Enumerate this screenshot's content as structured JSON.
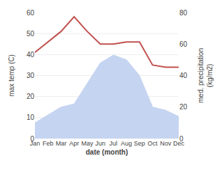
{
  "chart_data": {
    "type": "line",
    "categories": [
      "Jan",
      "Feb",
      "Mar",
      "Apr",
      "May",
      "Jun",
      "Jul",
      "Aug",
      "Sep",
      "Oct",
      "Nov",
      "Dec"
    ],
    "series": [
      {
        "type": "area",
        "axis": "y2",
        "color": "#c5d4f0",
        "values": [
          10,
          15,
          20,
          22,
          35,
          48,
          53,
          50,
          40,
          20,
          18,
          14
        ]
      },
      {
        "type": "line",
        "color": "#c0504d",
        "values": [
          41,
          46,
          51,
          58,
          51,
          45,
          45,
          46,
          46,
          35,
          34,
          34
        ]
      }
    ],
    "x_label": "date (month)",
    "y_label": "max temp (C)",
    "y2_label": "med. precipitation\n(kg/m2)",
    "ylim": [
      0,
      60
    ],
    "yticks": [
      0,
      10,
      20,
      30,
      40,
      50,
      60
    ],
    "y2lim": [
      0,
      80
    ],
    "y2ticks": [
      0,
      20,
      40,
      60,
      80
    ],
    "grid": true
  }
}
